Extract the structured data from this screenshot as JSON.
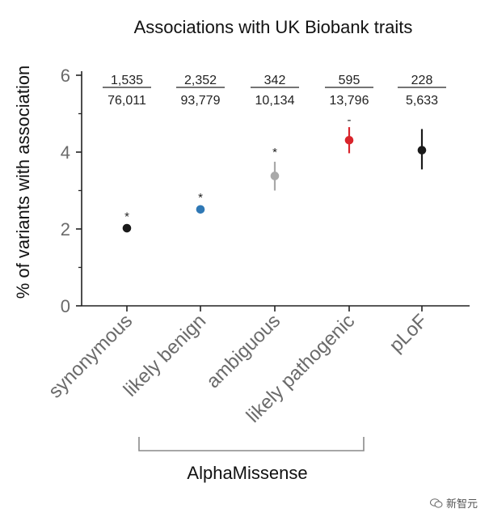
{
  "chart_data": {
    "type": "scatter",
    "title": "Associations with UK Biobank traits",
    "ylabel": "% of variants with association",
    "xlabel": "",
    "ylim": [
      0,
      6
    ],
    "yticks": [
      "0",
      "2",
      "4",
      "6"
    ],
    "grid": false,
    "categories": [
      "synonymous",
      "likely benign",
      "ambiguous",
      "likely pathogenic",
      "pLoF"
    ],
    "points": [
      {
        "category": "synonymous",
        "value": 2.02,
        "ci_low": 1.97,
        "ci_high": 2.07,
        "color": "#1a1a1a",
        "numerator": "1,535",
        "denominator": "76,011",
        "marker": "*"
      },
      {
        "category": "likely benign",
        "value": 2.51,
        "ci_low": 2.45,
        "ci_high": 2.57,
        "color": "#2f78b5",
        "numerator": "2,352",
        "denominator": "93,779",
        "marker": "*"
      },
      {
        "category": "ambiguous",
        "value": 3.38,
        "ci_low": 3.0,
        "ci_high": 3.75,
        "color": "#a9a9a9",
        "numerator": "342",
        "denominator": "10,134",
        "marker": "*"
      },
      {
        "category": "likely pathogenic",
        "value": 4.31,
        "ci_low": 3.97,
        "ci_high": 4.65,
        "color": "#d9242b",
        "numerator": "595",
        "denominator": "13,796",
        "marker": "-"
      },
      {
        "category": "pLoF",
        "value": 4.05,
        "ci_low": 3.55,
        "ci_high": 4.6,
        "color": "#1a1a1a",
        "numerator": "228",
        "denominator": "5,633",
        "marker": ""
      }
    ],
    "group_bracket": {
      "label": "AlphaMissense",
      "from": "synonymous",
      "to": "likely pathogenic"
    }
  },
  "watermark": {
    "text": "新智元",
    "icon": "wechat-icon"
  }
}
